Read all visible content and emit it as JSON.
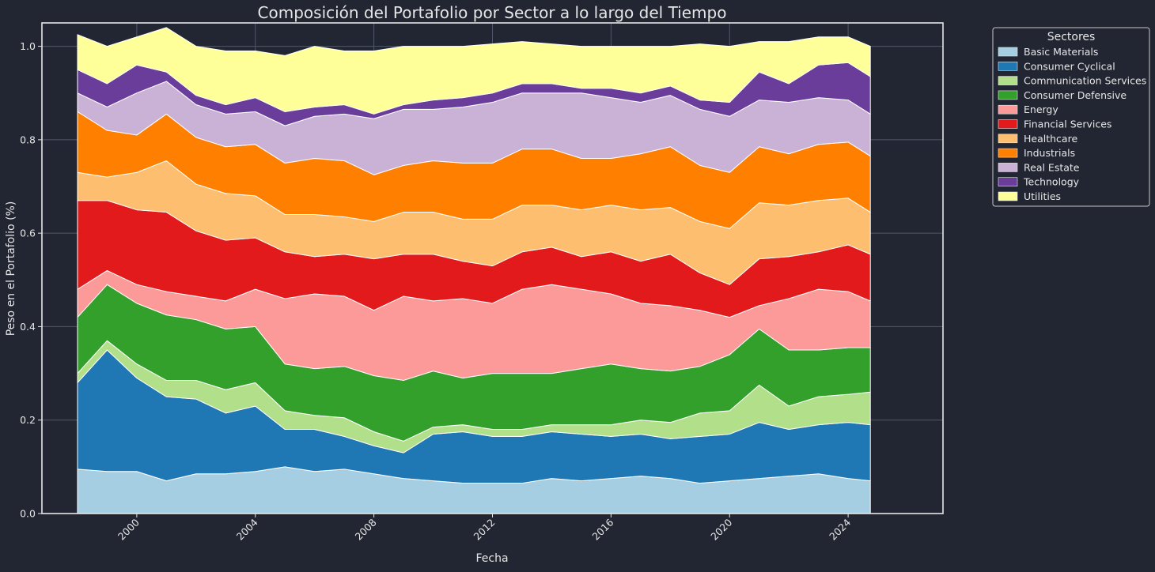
{
  "chart_data": {
    "type": "area",
    "stacked": true,
    "title": "Composición del Portafolio por Sector a lo largo del Tiempo",
    "xlabel": "Fecha",
    "ylabel": "Peso en el Portafolio (%)",
    "xlim": [
      1996.8,
      2027.2
    ],
    "ylim": [
      0,
      1.05
    ],
    "x_ticks": [
      "2000",
      "2004",
      "2008",
      "2012",
      "2016",
      "2020",
      "2024"
    ],
    "y_ticks": [
      "0.0",
      "0.2",
      "0.4",
      "0.6",
      "0.8",
      "1.0"
    ],
    "grid": true,
    "legend_title": "Sectores",
    "legend_position": "outside-right-top",
    "x": [
      1998.0,
      1999.0,
      2000.0,
      2001.0,
      2002.0,
      2003.0,
      2004.0,
      2005.0,
      2006.0,
      2007.0,
      2008.0,
      2009.0,
      2010.0,
      2011.0,
      2012.0,
      2013.0,
      2014.0,
      2015.0,
      2016.0,
      2017.0,
      2018.0,
      2019.0,
      2020.0,
      2021.0,
      2022.0,
      2023.0,
      2024.0,
      2024.75
    ],
    "series": [
      {
        "name": "Basic Materials",
        "color": "#a6cee3",
        "values": [
          0.095,
          0.09,
          0.09,
          0.07,
          0.085,
          0.085,
          0.09,
          0.1,
          0.09,
          0.095,
          0.085,
          0.075,
          0.07,
          0.065,
          0.065,
          0.065,
          0.075,
          0.07,
          0.075,
          0.08,
          0.075,
          0.065,
          0.07,
          0.075,
          0.08,
          0.085,
          0.075,
          0.07
        ]
      },
      {
        "name": "Consumer Cyclical",
        "color": "#1f78b4",
        "values": [
          0.185,
          0.26,
          0.2,
          0.18,
          0.16,
          0.13,
          0.14,
          0.08,
          0.09,
          0.07,
          0.06,
          0.055,
          0.1,
          0.11,
          0.1,
          0.1,
          0.1,
          0.1,
          0.09,
          0.09,
          0.085,
          0.1,
          0.1,
          0.12,
          0.1,
          0.105,
          0.12,
          0.12
        ]
      },
      {
        "name": "Communication Services",
        "color": "#b2df8a",
        "values": [
          0.02,
          0.02,
          0.03,
          0.035,
          0.04,
          0.05,
          0.05,
          0.04,
          0.03,
          0.04,
          0.03,
          0.025,
          0.015,
          0.015,
          0.015,
          0.015,
          0.015,
          0.02,
          0.025,
          0.03,
          0.035,
          0.05,
          0.05,
          0.08,
          0.05,
          0.06,
          0.06,
          0.07
        ]
      },
      {
        "name": "Consumer Defensive",
        "color": "#33a02c",
        "values": [
          0.12,
          0.12,
          0.13,
          0.14,
          0.13,
          0.13,
          0.12,
          0.1,
          0.1,
          0.11,
          0.12,
          0.13,
          0.12,
          0.1,
          0.12,
          0.12,
          0.11,
          0.12,
          0.13,
          0.11,
          0.11,
          0.1,
          0.12,
          0.12,
          0.12,
          0.1,
          0.1,
          0.095
        ]
      },
      {
        "name": "Energy",
        "color": "#fb9a99",
        "values": [
          0.06,
          0.03,
          0.04,
          0.05,
          0.05,
          0.06,
          0.08,
          0.14,
          0.16,
          0.15,
          0.14,
          0.18,
          0.15,
          0.17,
          0.15,
          0.18,
          0.19,
          0.17,
          0.15,
          0.14,
          0.14,
          0.12,
          0.08,
          0.05,
          0.11,
          0.13,
          0.12,
          0.1
        ]
      },
      {
        "name": "Financial Services",
        "color": "#e31a1c",
        "values": [
          0.19,
          0.15,
          0.16,
          0.17,
          0.14,
          0.13,
          0.11,
          0.1,
          0.08,
          0.09,
          0.11,
          0.09,
          0.1,
          0.08,
          0.08,
          0.08,
          0.08,
          0.07,
          0.09,
          0.09,
          0.11,
          0.08,
          0.07,
          0.1,
          0.09,
          0.08,
          0.1,
          0.1
        ]
      },
      {
        "name": "Healthcare",
        "color": "#fdbf6f",
        "values": [
          0.06,
          0.05,
          0.08,
          0.11,
          0.1,
          0.1,
          0.09,
          0.08,
          0.09,
          0.08,
          0.08,
          0.09,
          0.09,
          0.09,
          0.1,
          0.1,
          0.09,
          0.1,
          0.1,
          0.11,
          0.1,
          0.11,
          0.12,
          0.12,
          0.11,
          0.11,
          0.1,
          0.09
        ]
      },
      {
        "name": "Industrials",
        "color": "#ff7f00",
        "values": [
          0.13,
          0.1,
          0.08,
          0.1,
          0.1,
          0.1,
          0.11,
          0.11,
          0.12,
          0.12,
          0.1,
          0.1,
          0.11,
          0.12,
          0.12,
          0.12,
          0.12,
          0.11,
          0.1,
          0.12,
          0.13,
          0.12,
          0.12,
          0.12,
          0.11,
          0.12,
          0.12,
          0.12
        ]
      },
      {
        "name": "Real Estate",
        "color": "#cab2d6",
        "values": [
          0.04,
          0.05,
          0.09,
          0.07,
          0.07,
          0.07,
          0.07,
          0.08,
          0.09,
          0.1,
          0.12,
          0.12,
          0.11,
          0.12,
          0.13,
          0.12,
          0.12,
          0.14,
          0.13,
          0.11,
          0.11,
          0.12,
          0.12,
          0.1,
          0.11,
          0.1,
          0.09,
          0.09
        ]
      },
      {
        "name": "Technology",
        "color": "#6a3d9a",
        "values": [
          0.05,
          0.05,
          0.06,
          0.02,
          0.02,
          0.02,
          0.03,
          0.03,
          0.02,
          0.02,
          0.01,
          0.01,
          0.02,
          0.02,
          0.02,
          0.02,
          0.02,
          0.01,
          0.02,
          0.02,
          0.02,
          0.02,
          0.03,
          0.06,
          0.04,
          0.07,
          0.08,
          0.08
        ]
      },
      {
        "name": "Utilities",
        "color": "#ffff99",
        "values": [
          0.075,
          0.08,
          0.06,
          0.095,
          0.105,
          0.115,
          0.1,
          0.12,
          0.13,
          0.115,
          0.135,
          0.125,
          0.115,
          0.11,
          0.105,
          0.09,
          0.085,
          0.09,
          0.09,
          0.1,
          0.085,
          0.12,
          0.12,
          0.065,
          0.09,
          0.06,
          0.055,
          0.065
        ]
      }
    ]
  },
  "colors": {
    "background": "#222632",
    "axes_frame": "#e6e6e6",
    "grid": "#51586a",
    "separator": "#ffffff"
  }
}
